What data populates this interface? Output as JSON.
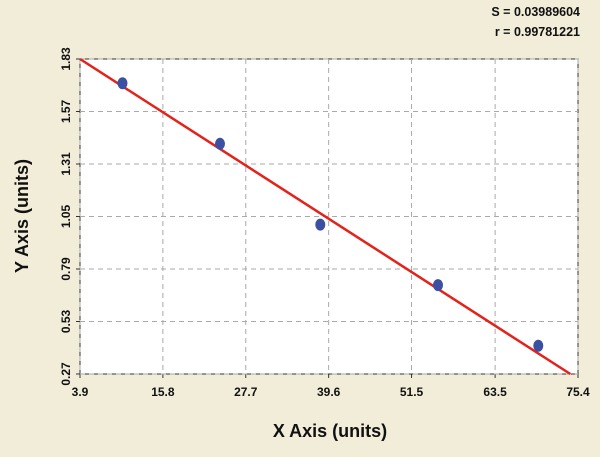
{
  "chart_data": {
    "type": "scatter",
    "annotations": [
      "S = 0.03989604",
      "r = 0.99781221"
    ],
    "x_label": "X Axis (units)",
    "y_label": "Y Axis (units)",
    "xlim": [
      3.9,
      75.4
    ],
    "xticks": [
      3.9,
      15.8,
      27.7,
      39.6,
      51.5,
      63.5,
      75.4
    ],
    "ylim": [
      0.27,
      1.83
    ],
    "yticks": [
      0.27,
      0.53,
      0.79,
      1.05,
      1.31,
      1.57,
      1.83
    ],
    "grid": true,
    "series": [
      {
        "kind": "points",
        "color": "#3b4fa3",
        "x": [
          10.0,
          24.0,
          38.4,
          55.3,
          69.7
        ],
        "values": [
          1.71,
          1.41,
          1.01,
          0.71,
          0.41
        ]
      },
      {
        "kind": "fit",
        "color": "#e3231b",
        "x": [
          3.9,
          74.3
        ],
        "values": [
          1.83,
          0.27
        ]
      }
    ]
  }
}
